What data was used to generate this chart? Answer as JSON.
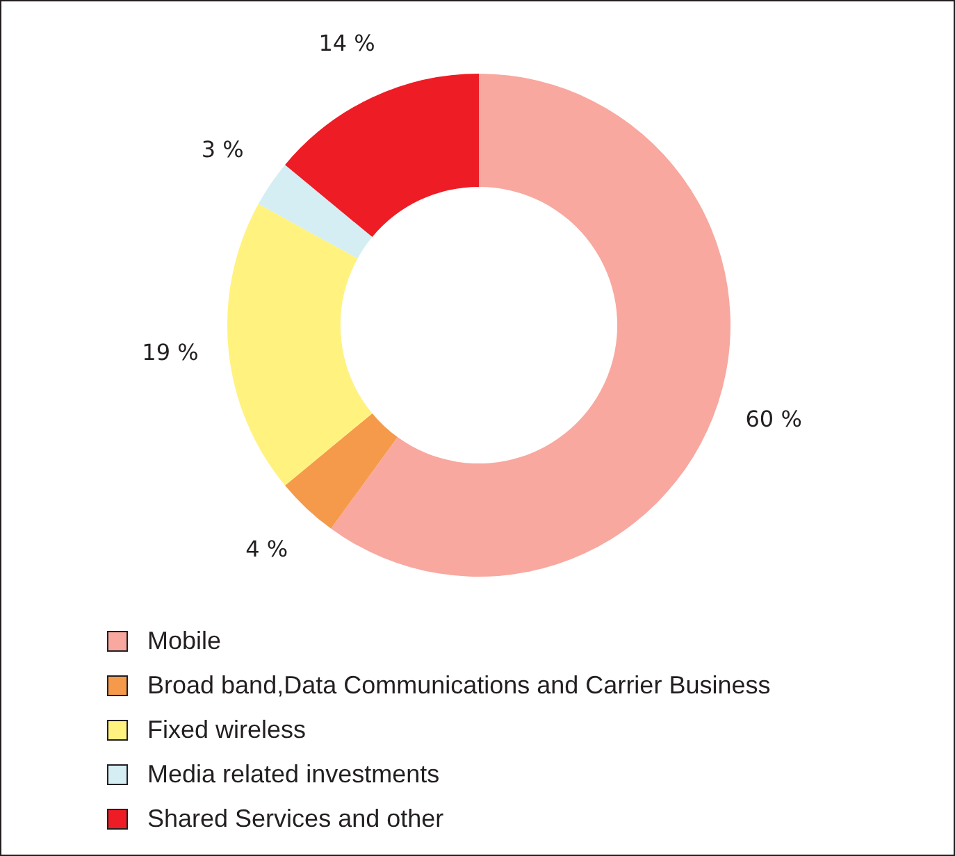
{
  "chart_data": {
    "type": "donut",
    "categories": [
      "Mobile",
      "Broad band,Data Communications and Carrier Business",
      "Fixed wireless",
      "Media related investments",
      "Shared Services and other"
    ],
    "values": [
      60,
      4,
      19,
      3,
      14
    ],
    "colors": [
      "#f8a89f",
      "#f59a4a",
      "#fff27f",
      "#d4eef4",
      "#ee1c25"
    ],
    "value_labels": [
      "60 %",
      "4 %",
      "19 %",
      "3 %",
      "14 %"
    ],
    "legend": "bottom"
  }
}
